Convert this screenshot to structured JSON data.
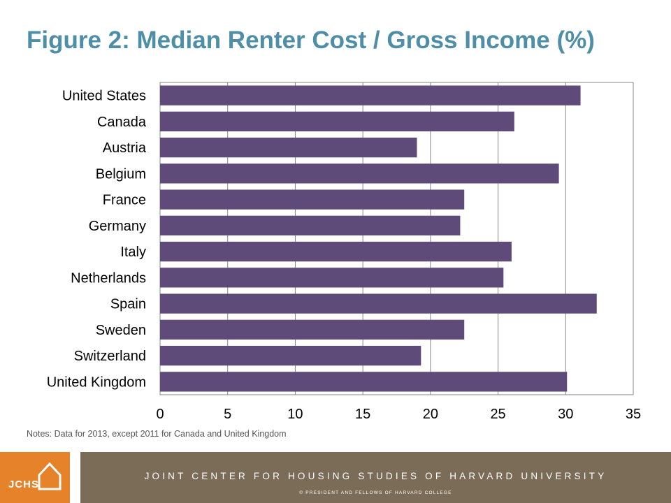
{
  "title": "Figure 2: Median Renter Cost / Gross Income (%)",
  "notes": "Notes: Data for 2013, except 2011 for Canada and United Kingdom",
  "footer": {
    "organization": "JOINT CENTER FOR HOUSING STUDIES OF HARVARD UNIVERSITY",
    "copyright": "© PRESIDENT  AND FELLOWS  OF  HARVARD  COLLEGE",
    "logo_text": "JCHS"
  },
  "colors": {
    "title": "#4e8ea6",
    "bar": "#5f4b7a",
    "logo_bg": "#e5822a",
    "footer_bg": "#7a6c57"
  },
  "chart_data": {
    "type": "bar",
    "orientation": "horizontal",
    "title": "Figure 2: Median Renter Cost / Gross Income (%)",
    "categories": [
      "United States",
      "Canada",
      "Austria",
      "Belgium",
      "France",
      "Germany",
      "Italy",
      "Netherlands",
      "Spain",
      "Sweden",
      "Switzerland",
      "United Kingdom"
    ],
    "values": [
      31.1,
      26.2,
      19.0,
      29.5,
      22.5,
      22.2,
      26.0,
      25.4,
      32.3,
      22.5,
      19.3,
      30.1
    ],
    "xlim": [
      0,
      35
    ],
    "xticks": [
      0,
      5,
      10,
      15,
      20,
      25,
      30,
      35
    ],
    "grid": "vertical",
    "legend": "none",
    "xlabel": "",
    "ylabel": ""
  }
}
